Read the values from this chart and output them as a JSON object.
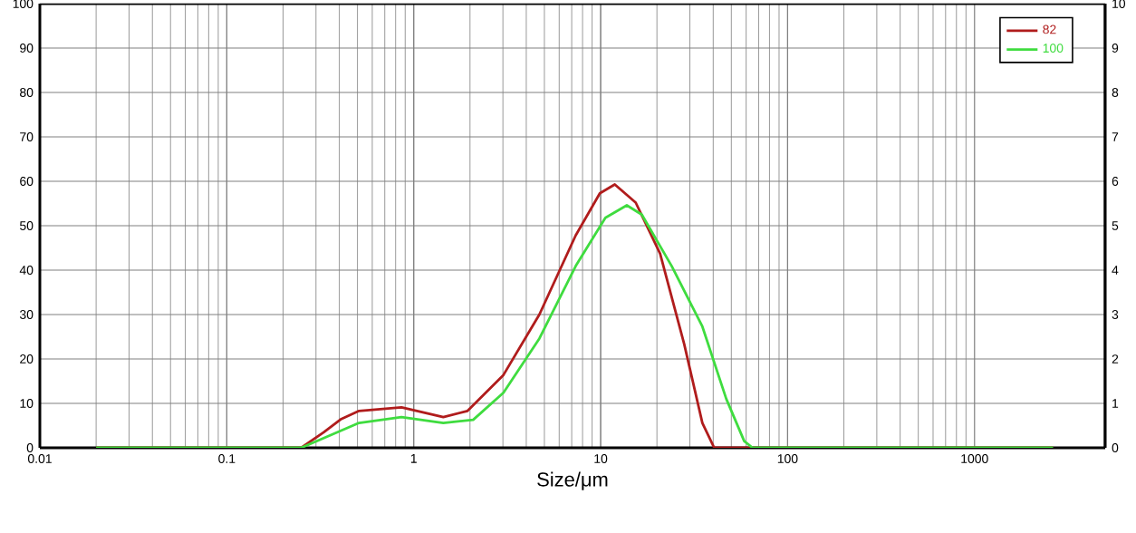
{
  "chart_data": {
    "type": "line",
    "xlabel": "Size/μm",
    "log": "x",
    "grid": true,
    "legend": "top right",
    "xlim": [
      0.01,
      5000
    ],
    "xticks": [
      0.01,
      0.1,
      1,
      10,
      100,
      1000
    ],
    "ylim": [
      0,
      100
    ],
    "yticks": [
      0,
      10,
      20,
      30,
      40,
      50,
      60,
      70,
      80,
      90,
      100
    ],
    "y2lim": [
      0,
      10
    ],
    "y2ticks": [
      0,
      1,
      2,
      3,
      4,
      5,
      6,
      7,
      8,
      9,
      10
    ],
    "series": [
      {
        "name": "82",
        "color": "#b01c1c",
        "x": [
          0.02,
          0.25,
          0.33,
          0.41,
          0.51,
          0.86,
          1.44,
          1.94,
          3.02,
          4.7,
          7.35,
          9.9,
          11.9,
          15.4,
          20.8,
          28,
          35,
          40.5,
          65,
          2630
        ],
        "values": [
          0,
          0,
          3.5,
          6.5,
          8.3,
          9.1,
          6.9,
          8.3,
          16.4,
          30,
          47.8,
          57.3,
          59.3,
          55.2,
          43.7,
          23.3,
          5.6,
          0,
          0,
          0
        ]
      },
      {
        "name": "100",
        "color": "#3fdc3f",
        "x": [
          0.02,
          0.25,
          0.51,
          0.86,
          1.44,
          2.08,
          3.02,
          4.7,
          7.35,
          10.6,
          13.8,
          16.6,
          24,
          35,
          47,
          58.6,
          65,
          2630
        ],
        "values": [
          0,
          0,
          5.6,
          6.9,
          5.6,
          6.3,
          12.4,
          24.6,
          40.9,
          51.8,
          54.6,
          52.5,
          40.9,
          27.3,
          11,
          1.5,
          0,
          0
        ]
      }
    ]
  }
}
